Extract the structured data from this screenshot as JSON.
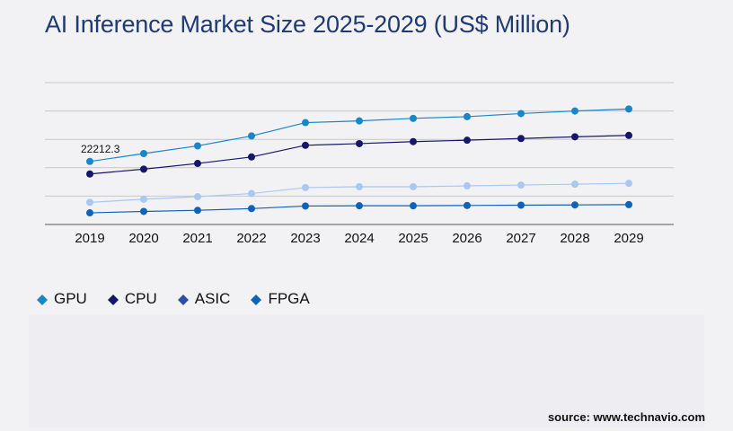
{
  "title": "AI Inference Market Size 2025-2029 (US$ Million)",
  "source": "source: www.technavio.com",
  "chart_data": {
    "type": "line",
    "title": "AI Inference Market Size 2025-2029 (US$ Million)",
    "xlabel": "",
    "ylabel": "",
    "x": [
      "2019",
      "2020",
      "2021",
      "2022",
      "2023",
      "2024",
      "2025",
      "2026",
      "2027",
      "2028",
      "2029"
    ],
    "ylim": [
      0,
      50000
    ],
    "grid": true,
    "legend_position": "bottom-left",
    "series": [
      {
        "name": "GPU",
        "color": "#1a86c8",
        "values": [
          22212.3,
          25000,
          27700,
          31200,
          35900,
          36500,
          37400,
          38000,
          39100,
          40000,
          40700
        ]
      },
      {
        "name": "CPU",
        "color": "#16166b",
        "values": [
          17800,
          19500,
          21500,
          23800,
          27900,
          28500,
          29200,
          29700,
          30300,
          30900,
          31400
        ]
      },
      {
        "name": "ASIC",
        "color": "#a8c8f2",
        "values": [
          7800,
          8900,
          9800,
          10900,
          13000,
          13300,
          13300,
          13600,
          13900,
          14200,
          14500
        ]
      },
      {
        "name": "FPGA",
        "color": "#0e63b8",
        "values": [
          4100,
          4600,
          5000,
          5600,
          6500,
          6600,
          6600,
          6700,
          6800,
          6900,
          7000
        ]
      }
    ],
    "annotations": [
      {
        "series": "GPU",
        "x": "2019",
        "label": "22212.3"
      }
    ]
  },
  "legend": [
    {
      "label": "GPU",
      "color": "#1a86c8"
    },
    {
      "label": "CPU",
      "color": "#16166b"
    },
    {
      "label": "ASIC",
      "color": "#2a4fa8"
    },
    {
      "label": "FPGA",
      "color": "#0e63b8"
    }
  ]
}
